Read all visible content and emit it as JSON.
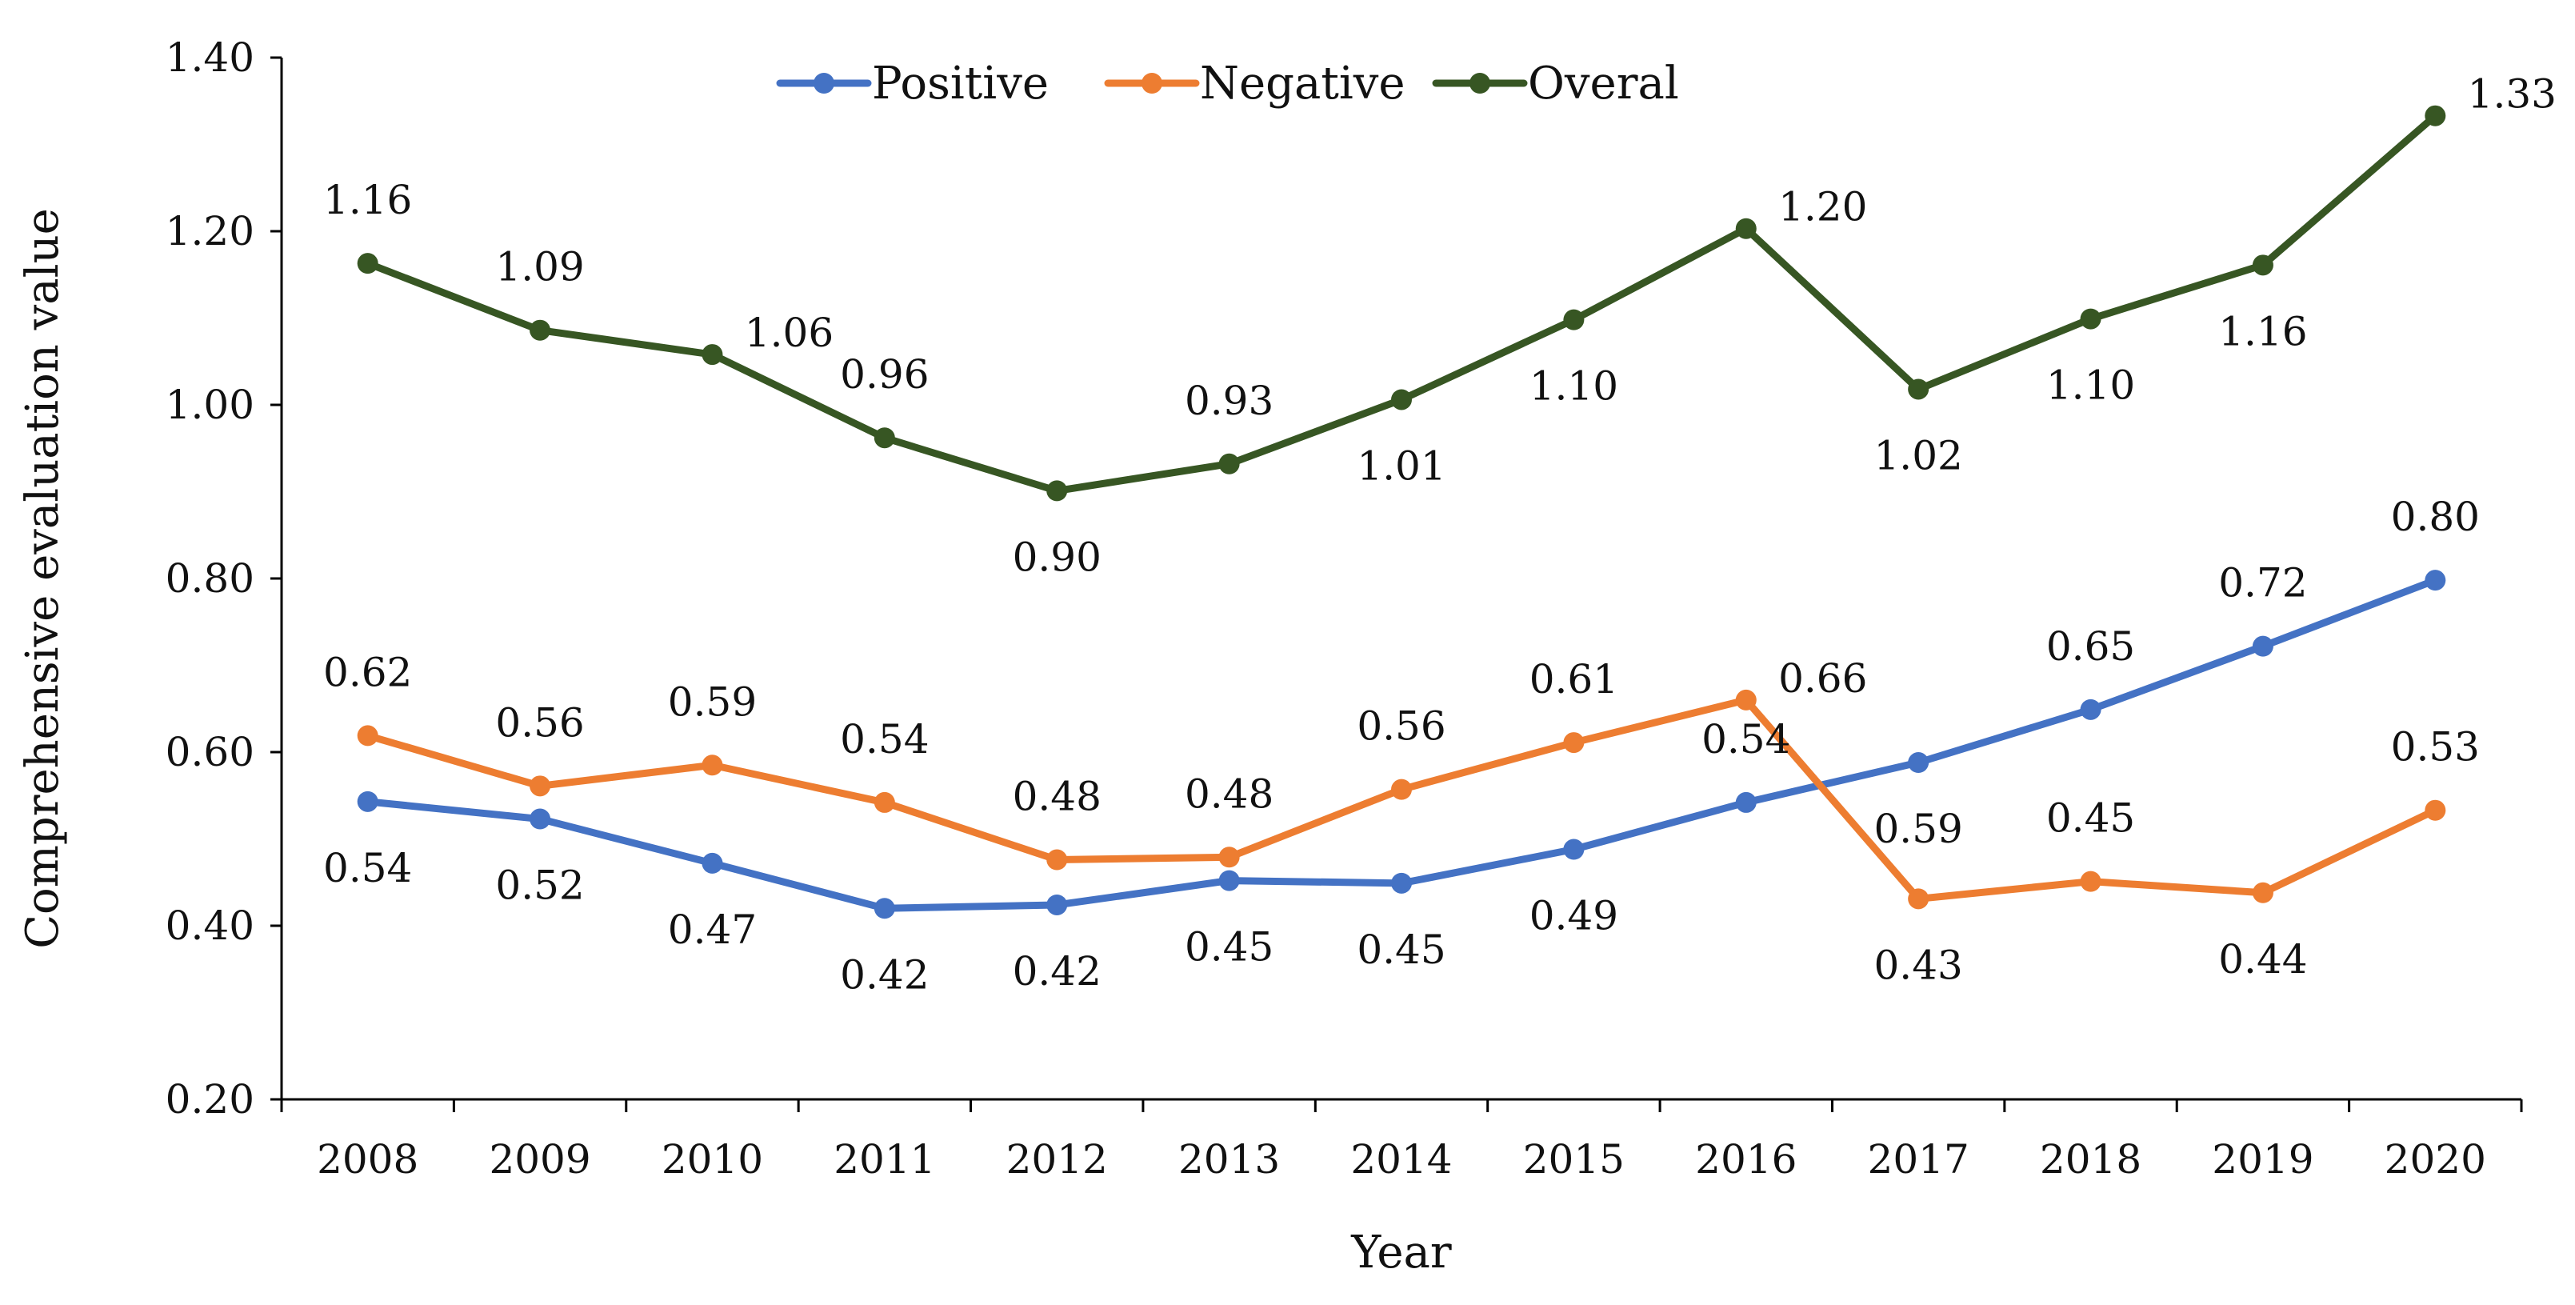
{
  "chart_data": {
    "type": "line",
    "title": "",
    "xlabel": "Year",
    "ylabel": "Comprehensive evaluation value",
    "categories": [
      "2008",
      "2009",
      "2010",
      "2011",
      "2012",
      "2013",
      "2014",
      "2015",
      "2016",
      "2017",
      "2018",
      "2019",
      "2020"
    ],
    "ylim": [
      0.2,
      1.4
    ],
    "yticks": [
      "0.20",
      "0.40",
      "0.60",
      "0.80",
      "1.00",
      "1.20",
      "1.40"
    ],
    "ytick_values": [
      0.2,
      0.4,
      0.6,
      0.8,
      1.0,
      1.2,
      1.4
    ],
    "legend_position": "top-center",
    "grid": false,
    "series": [
      {
        "name": "Positive",
        "color": "#4472C4",
        "values": [
          0.543,
          0.523,
          0.472,
          0.42,
          0.424,
          0.452,
          0.449,
          0.488,
          0.542,
          0.588,
          0.649,
          0.722,
          0.798
        ],
        "labels": [
          "0.54",
          "0.52",
          "0.47",
          "0.42",
          "0.42",
          "0.45",
          "0.45",
          "0.49",
          "0.54",
          "0.59",
          "0.65",
          "0.72",
          "0.80"
        ],
        "label_side": [
          "below",
          "below",
          "below",
          "below",
          "below",
          "below",
          "below",
          "below",
          "above",
          "below",
          "above",
          "above",
          "above"
        ]
      },
      {
        "name": "Negative",
        "color": "#ED7D31",
        "values": [
          0.619,
          0.561,
          0.585,
          0.542,
          0.476,
          0.479,
          0.557,
          0.611,
          0.66,
          0.431,
          0.451,
          0.438,
          0.533
        ],
        "labels": [
          "0.62",
          "0.56",
          "0.59",
          "0.54",
          "0.48",
          "0.48",
          "0.56",
          "0.61",
          "0.66",
          "0.43",
          "0.45",
          "0.44",
          "0.53"
        ],
        "label_side": [
          "above",
          "above",
          "above",
          "above",
          "above",
          "above",
          "above",
          "above",
          "right",
          "below",
          "above",
          "below",
          "above"
        ]
      },
      {
        "name": "Overal",
        "color": "#375623",
        "values": [
          1.163,
          1.086,
          1.058,
          0.962,
          0.901,
          0.932,
          1.006,
          1.098,
          1.203,
          1.018,
          1.099,
          1.161,
          1.333
        ],
        "labels": [
          "1.16",
          "1.09",
          "1.06",
          "0.96",
          "0.90",
          "0.93",
          "1.01",
          "1.10",
          "1.20",
          "1.02",
          "1.10",
          "1.16",
          "1.33"
        ],
        "label_side": [
          "above",
          "above",
          "right",
          "above",
          "below",
          "above",
          "below",
          "below",
          "right",
          "below",
          "below",
          "below",
          "right"
        ]
      }
    ]
  }
}
